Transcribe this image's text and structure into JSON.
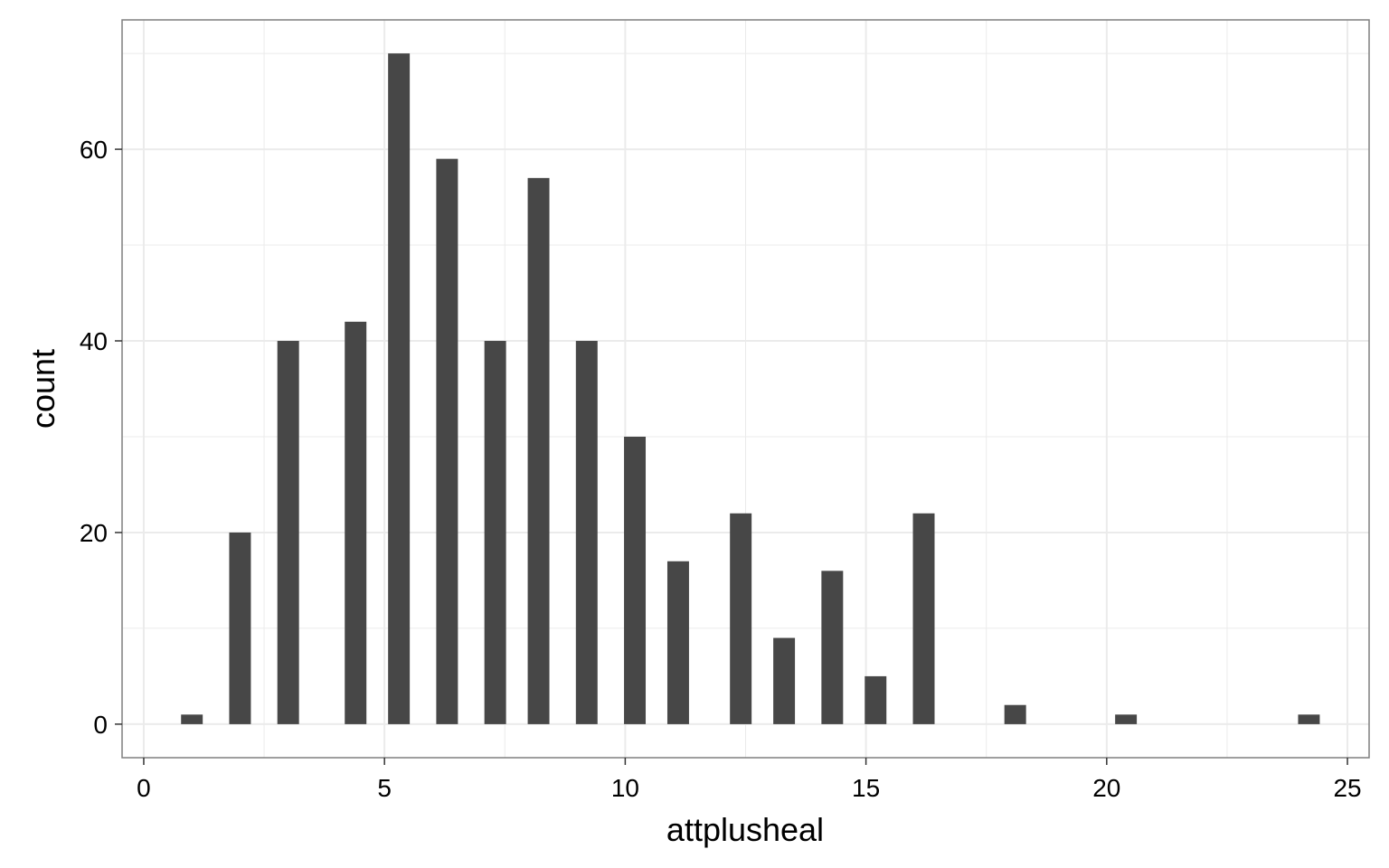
{
  "chart_data": {
    "type": "bar",
    "title": "",
    "xlabel": "attplusheal",
    "ylabel": "count",
    "xlim": [
      -0.45,
      25.45
    ],
    "ylim": [
      -3.5,
      73.5
    ],
    "xticks": [
      0,
      5,
      10,
      15,
      20,
      25
    ],
    "yticks": [
      0,
      20,
      40,
      60
    ],
    "grid": true,
    "legend": "none",
    "bar_color": "#474747",
    "panel_border_color": "#7f7f7f",
    "grid_color": "#ebebeb",
    "x": [
      1,
      2,
      3,
      4.4,
      5.3,
      6.3,
      7.3,
      8.2,
      9.2,
      10.2,
      11.1,
      12.4,
      13.3,
      14.3,
      15.2,
      16.2,
      18.1,
      20.4,
      24.2
    ],
    "values": [
      1,
      20,
      40,
      42,
      70,
      59,
      40,
      57,
      40,
      30,
      17,
      22,
      9,
      16,
      5,
      22,
      2,
      1,
      1
    ]
  }
}
